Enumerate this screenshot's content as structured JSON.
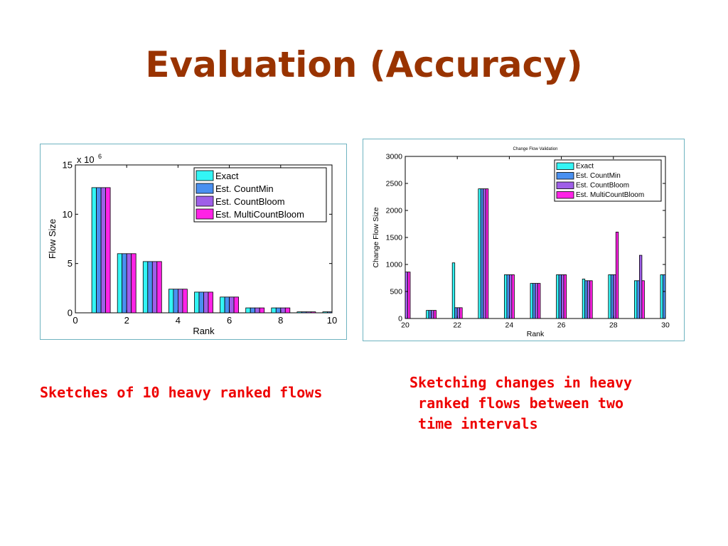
{
  "slide": {
    "title": "Evaluation (Accuracy)",
    "caption_left": "Sketches of 10 heavy ranked flows",
    "caption_right": "Sketching changes in heavy\n ranked flows between two\n time intervals"
  },
  "chart_data": [
    {
      "type": "bar",
      "title": "",
      "xlabel": "Rank",
      "ylabel": "Flow Size",
      "exponent_label": "x 10",
      "exponent_power": "6",
      "xlim": [
        0,
        10
      ],
      "ylim": [
        0,
        15
      ],
      "xticks": [
        0,
        2,
        4,
        6,
        8,
        10
      ],
      "yticks": [
        0,
        5,
        10,
        15
      ],
      "legend_position": "top-right",
      "categories": [
        1,
        2,
        3,
        4,
        5,
        6,
        7,
        8,
        9,
        10
      ],
      "series": [
        {
          "name": "Exact",
          "color": "#33f5f5",
          "values": [
            12.7,
            6.0,
            5.2,
            2.4,
            2.1,
            1.6,
            0.5,
            0.5,
            0.1,
            0.1
          ]
        },
        {
          "name": "Est. CountMin",
          "color": "#4a90f0",
          "values": [
            12.7,
            6.0,
            5.2,
            2.4,
            2.1,
            1.6,
            0.5,
            0.5,
            0.1,
            0.1
          ]
        },
        {
          "name": "Est. CountBloom",
          "color": "#9f5fe8",
          "values": [
            12.7,
            6.0,
            5.2,
            2.4,
            2.1,
            1.6,
            0.5,
            0.5,
            0.1,
            0.1
          ]
        },
        {
          "name": "Est. MultiCountBloom",
          "color": "#ff22e6",
          "values": [
            12.7,
            6.0,
            5.2,
            2.4,
            2.1,
            1.6,
            0.5,
            0.5,
            0.1,
            0.1
          ]
        }
      ]
    },
    {
      "type": "bar",
      "title": "Change Flow Validation",
      "xlabel": "Rank",
      "ylabel": "Change Flow Size",
      "xlim": [
        20,
        30
      ],
      "ylim": [
        0,
        3000
      ],
      "xticks": [
        20,
        22,
        24,
        26,
        28,
        30
      ],
      "yticks": [
        0,
        500,
        1000,
        1500,
        2000,
        2500,
        3000
      ],
      "legend_position": "top-right",
      "categories": [
        20,
        21,
        22,
        23,
        24,
        25,
        26,
        27,
        28,
        29,
        30
      ],
      "series": [
        {
          "name": "Exact",
          "color": "#33f5f5",
          "values": [
            860,
            150,
            1030,
            2400,
            810,
            650,
            810,
            730,
            810,
            700,
            810
          ]
        },
        {
          "name": "Est. CountMin",
          "color": "#4a90f0",
          "values": [
            860,
            150,
            200,
            2400,
            810,
            650,
            810,
            700,
            810,
            700,
            810
          ]
        },
        {
          "name": "Est. CountBloom",
          "color": "#9f5fe8",
          "values": [
            860,
            150,
            200,
            2400,
            810,
            650,
            810,
            700,
            810,
            1170,
            810
          ]
        },
        {
          "name": "Est. MultiCountBloom",
          "color": "#ff22e6",
          "values": [
            860,
            150,
            200,
            2400,
            810,
            650,
            810,
            700,
            1600,
            700,
            810
          ]
        }
      ]
    }
  ]
}
